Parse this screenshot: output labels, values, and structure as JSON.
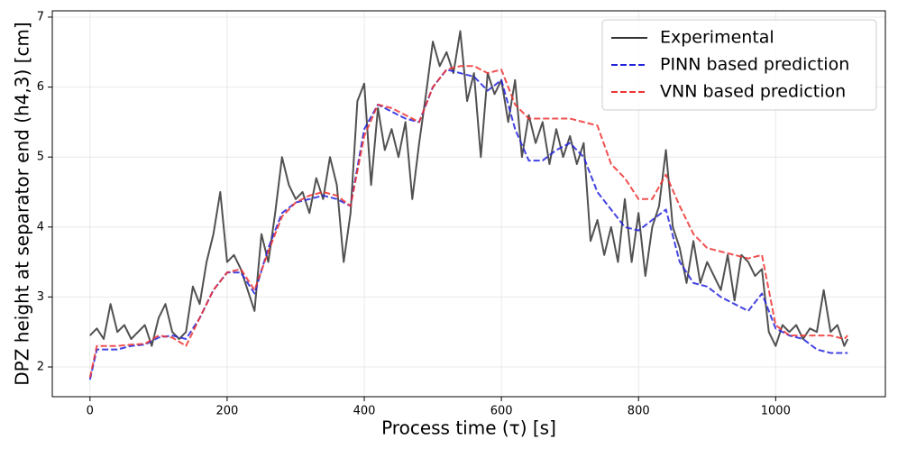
{
  "chart_data": {
    "type": "line",
    "xlabel": "Process time (τ) [s]",
    "ylabel": "DPZ height at separator end (h4,3) [cm]",
    "xlim": [
      -55,
      1160
    ],
    "ylim": [
      1.575,
      7.09
    ],
    "xticks": [
      0,
      200,
      400,
      600,
      800,
      1000
    ],
    "yticks": [
      2,
      3,
      4,
      5,
      6,
      7
    ],
    "grid": true,
    "legend": "upper right",
    "series": [
      {
        "name": "Experimental",
        "color": "#333333",
        "dash": "solid",
        "x": [
          0,
          10,
          20,
          30,
          40,
          50,
          60,
          70,
          80,
          90,
          100,
          110,
          120,
          130,
          140,
          150,
          160,
          170,
          180,
          190,
          200,
          210,
          220,
          230,
          240,
          250,
          260,
          270,
          280,
          290,
          300,
          310,
          320,
          330,
          340,
          350,
          360,
          370,
          380,
          390,
          400,
          410,
          420,
          430,
          440,
          450,
          460,
          470,
          480,
          490,
          500,
          510,
          520,
          530,
          540,
          550,
          560,
          570,
          580,
          590,
          600,
          610,
          620,
          630,
          640,
          650,
          660,
          670,
          680,
          690,
          700,
          710,
          720,
          730,
          740,
          750,
          760,
          770,
          780,
          790,
          800,
          810,
          820,
          830,
          840,
          850,
          860,
          870,
          880,
          890,
          900,
          910,
          920,
          930,
          940,
          950,
          960,
          970,
          980,
          990,
          1000,
          1010,
          1020,
          1030,
          1040,
          1050,
          1060,
          1070,
          1080,
          1090,
          1100,
          1105
        ],
        "values": [
          2.45,
          2.55,
          2.4,
          2.9,
          2.5,
          2.6,
          2.4,
          2.5,
          2.6,
          2.3,
          2.7,
          2.9,
          2.5,
          2.4,
          2.5,
          3.15,
          2.9,
          3.5,
          3.9,
          4.5,
          3.5,
          3.6,
          3.4,
          3.1,
          2.8,
          3.9,
          3.5,
          4.2,
          5.0,
          4.6,
          4.4,
          4.5,
          4.2,
          4.7,
          4.4,
          5.0,
          4.6,
          3.5,
          4.2,
          5.8,
          6.05,
          4.6,
          5.7,
          5.1,
          5.4,
          5.0,
          5.5,
          4.4,
          5.2,
          5.9,
          6.65,
          6.3,
          6.5,
          6.2,
          6.8,
          5.8,
          6.2,
          5.0,
          6.2,
          5.9,
          6.1,
          5.5,
          6.1,
          5.0,
          5.6,
          5.2,
          5.5,
          4.9,
          5.4,
          5.0,
          5.3,
          4.9,
          5.2,
          3.8,
          4.1,
          3.6,
          4.0,
          3.5,
          4.4,
          3.5,
          4.2,
          3.3,
          4.0,
          4.3,
          5.1,
          4.0,
          3.7,
          3.2,
          3.8,
          3.2,
          3.5,
          3.3,
          3.1,
          3.6,
          2.95,
          3.6,
          3.5,
          3.3,
          3.4,
          2.5,
          2.3,
          2.6,
          2.5,
          2.6,
          2.4,
          2.55,
          2.5,
          3.1,
          2.5,
          2.6,
          2.3,
          2.4
        ]
      },
      {
        "name": "PINN based prediction",
        "color": "#2222dd",
        "dash": "dashed",
        "x": [
          0,
          10,
          20,
          40,
          60,
          80,
          100,
          120,
          140,
          160,
          180,
          200,
          220,
          240,
          260,
          280,
          300,
          320,
          340,
          360,
          380,
          400,
          420,
          440,
          460,
          480,
          500,
          520,
          540,
          560,
          580,
          600,
          620,
          640,
          660,
          680,
          700,
          720,
          740,
          760,
          780,
          800,
          820,
          840,
          860,
          880,
          900,
          920,
          940,
          960,
          980,
          1000,
          1020,
          1040,
          1060,
          1080,
          1100,
          1105
        ],
        "values": [
          1.82,
          2.25,
          2.25,
          2.25,
          2.3,
          2.32,
          2.42,
          2.45,
          2.4,
          2.7,
          3.1,
          3.35,
          3.35,
          3.05,
          3.7,
          4.2,
          4.35,
          4.4,
          4.45,
          4.4,
          4.3,
          5.4,
          5.75,
          5.65,
          5.55,
          5.5,
          6.0,
          6.25,
          6.2,
          6.15,
          5.95,
          6.1,
          5.4,
          4.95,
          4.95,
          5.1,
          5.2,
          5.0,
          4.5,
          4.25,
          4.0,
          3.95,
          4.1,
          4.25,
          3.5,
          3.2,
          3.15,
          3.0,
          2.9,
          2.8,
          3.05,
          2.55,
          2.45,
          2.4,
          2.25,
          2.2,
          2.2,
          2.2
        ]
      },
      {
        "name": "VNN based prediction",
        "color": "#ee3333",
        "dash": "dashed",
        "x": [
          0,
          10,
          20,
          40,
          60,
          80,
          100,
          120,
          140,
          160,
          180,
          200,
          220,
          240,
          260,
          280,
          300,
          320,
          340,
          360,
          380,
          400,
          420,
          440,
          460,
          480,
          500,
          520,
          540,
          560,
          580,
          600,
          620,
          640,
          660,
          680,
          700,
          720,
          740,
          760,
          780,
          800,
          820,
          840,
          860,
          880,
          900,
          920,
          940,
          960,
          980,
          1000,
          1020,
          1040,
          1060,
          1080,
          1100,
          1105
        ],
        "values": [
          1.85,
          2.3,
          2.3,
          2.3,
          2.32,
          2.33,
          2.45,
          2.42,
          2.3,
          2.7,
          3.1,
          3.35,
          3.4,
          3.1,
          3.65,
          4.15,
          4.35,
          4.45,
          4.5,
          4.45,
          4.3,
          5.3,
          5.75,
          5.7,
          5.6,
          5.5,
          6.0,
          6.25,
          6.3,
          6.3,
          6.2,
          6.25,
          5.75,
          5.55,
          5.55,
          5.55,
          5.55,
          5.5,
          5.45,
          4.9,
          4.7,
          4.4,
          4.4,
          4.75,
          4.3,
          3.9,
          3.7,
          3.65,
          3.6,
          3.55,
          3.6,
          2.6,
          2.45,
          2.45,
          2.45,
          2.45,
          2.4,
          2.45
        ]
      }
    ]
  }
}
